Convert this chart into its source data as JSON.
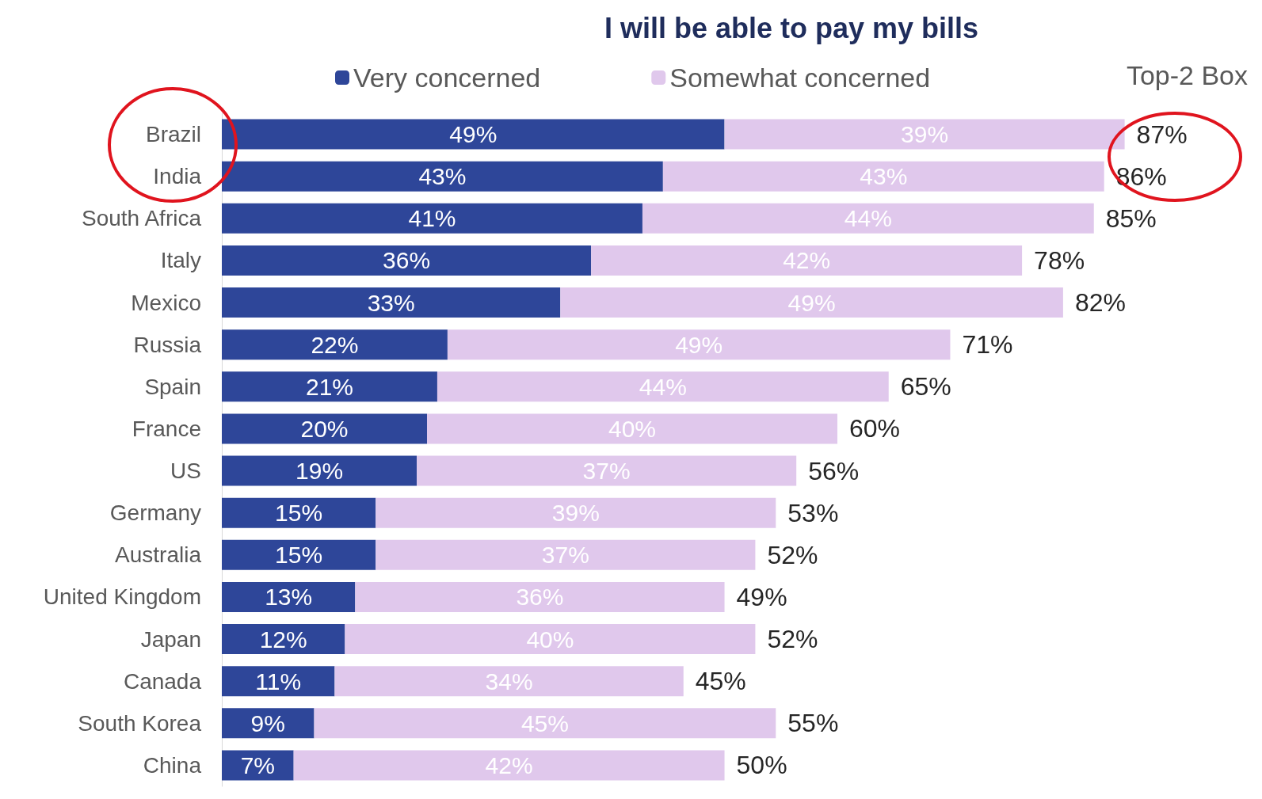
{
  "chart_data": {
    "type": "bar",
    "orientation": "horizontal",
    "stacked": true,
    "title": "I will be able to pay my bills",
    "categories": [
      "Brazil",
      "India",
      "South Africa",
      "Italy",
      "Mexico",
      "Russia",
      "Spain",
      "France",
      "US",
      "Germany",
      "Australia",
      "United Kingdom",
      "Japan",
      "Canada",
      "South Korea",
      "China"
    ],
    "series": [
      {
        "name": "Very concerned",
        "color": "#2e4699",
        "values": [
          49,
          43,
          41,
          36,
          33,
          22,
          21,
          20,
          19,
          15,
          15,
          13,
          12,
          11,
          9,
          7
        ],
        "value_labels": [
          "49%",
          "43%",
          "41%",
          "36%",
          "33%",
          "22%",
          "21%",
          "20%",
          "19%",
          "15%",
          "15%",
          "13%",
          "12%",
          "11%",
          "9%",
          "7%"
        ]
      },
      {
        "name": "Somewhat concerned",
        "color": "#e0c8ec",
        "values": [
          39,
          43,
          44,
          42,
          49,
          49,
          44,
          40,
          37,
          39,
          37,
          36,
          40,
          34,
          45,
          42
        ],
        "value_labels": [
          "39%",
          "43%",
          "44%",
          "42%",
          "49%",
          "49%",
          "44%",
          "40%",
          "37%",
          "39%",
          "37%",
          "36%",
          "40%",
          "34%",
          "45%",
          "42%"
        ]
      }
    ],
    "totals": [
      "87%",
      "86%",
      "85%",
      "78%",
      "82%",
      "71%",
      "65%",
      "60%",
      "56%",
      "53%",
      "52%",
      "49%",
      "52%",
      "45%",
      "55%",
      "50%"
    ],
    "annotations": [
      "Top-2 Box"
    ],
    "legend": "top"
  }
}
